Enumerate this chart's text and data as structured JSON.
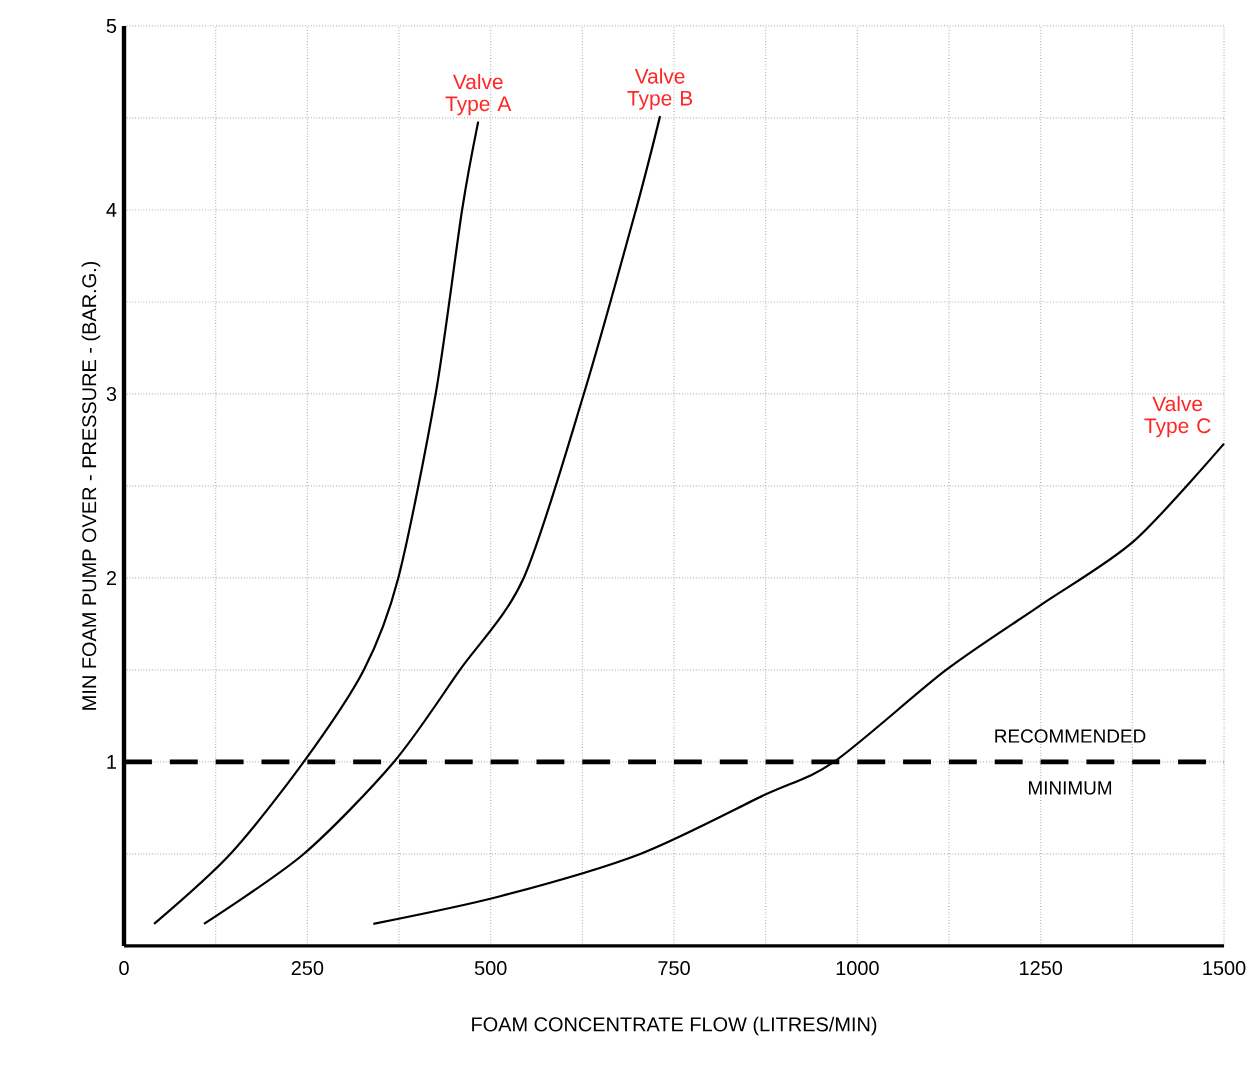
{
  "chart_data": {
    "type": "line",
    "xlabel": "FOAM CONCENTRATE FLOW (LITRES/MIN)",
    "ylabel": "MIN FOAM PUMP OVER - PRESSURE - (BAR.G.)",
    "xlim": [
      0,
      1500
    ],
    "ylim": [
      0,
      5
    ],
    "xticks": [
      0,
      {
        "value": 125,
        "label": null
      },
      250,
      {
        "value": 375,
        "label": null
      },
      500,
      {
        "value": 625,
        "label": null
      },
      750,
      {
        "value": 875,
        "label": null
      },
      1000,
      {
        "value": 1125,
        "label": null
      },
      1250,
      {
        "value": 1375,
        "label": null
      },
      1500
    ],
    "yticks": [
      {
        "value": 0.5,
        "label": null
      },
      1,
      {
        "value": 1.5,
        "label": null
      },
      2,
      {
        "value": 2.5,
        "label": null
      },
      3,
      {
        "value": 3.5,
        "label": null
      },
      4,
      {
        "value": 4.5,
        "label": null
      },
      5
    ],
    "grid": true,
    "marker": "none",
    "line_style": "solid",
    "series": [
      {
        "name": "Valve Type A",
        "color": "#000000",
        "x": [
          41,
          145,
          245,
          327,
          374,
          425,
          461,
          483
        ],
        "values": [
          0.12,
          0.5,
          1,
          1.5,
          2,
          3,
          4,
          4.48
        ]
      },
      {
        "name": "Valve Type B",
        "color": "#000000",
        "x": [
          109,
          245,
          368,
          458,
          545,
          627,
          698,
          731
        ],
        "values": [
          0.12,
          0.5,
          1,
          1.5,
          2,
          3,
          4,
          4.51
        ]
      },
      {
        "name": "Valve Type C",
        "color": "#000000",
        "x": [
          340,
          513,
          704,
          873,
          968,
          1121,
          1249,
          1377,
          1500
        ],
        "values": [
          0.12,
          0.27,
          0.5,
          0.82,
          1,
          1.5,
          1.85,
          2.2,
          2.73
        ]
      }
    ],
    "ref_lines": [
      {
        "axis": "y",
        "value": 1,
        "label": "RECOMMENDED MINIMUM",
        "color": "#000000",
        "line_style": "dashed"
      }
    ]
  }
}
